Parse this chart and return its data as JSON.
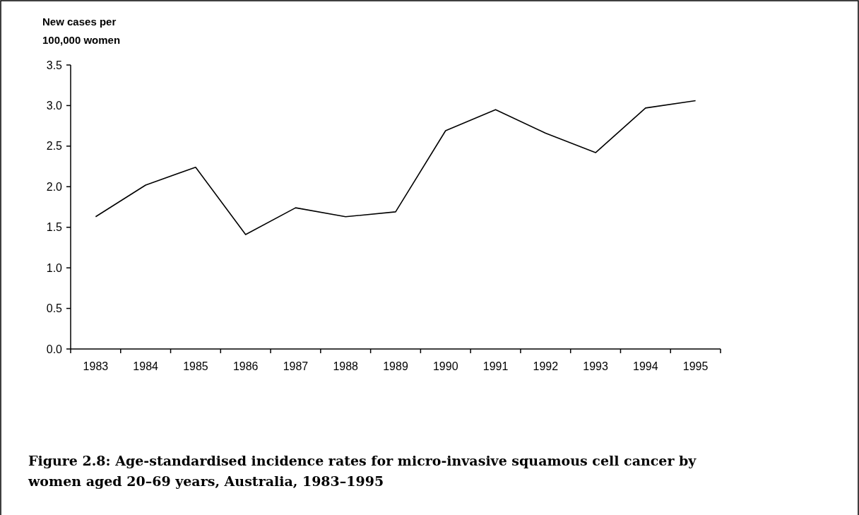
{
  "chart_data": {
    "type": "line",
    "ylabel": "New cases per 100,000 women",
    "title": "Figure 2.8: Age-standardised incidence rates for micro-invasive squamous cell cancer by women aged 20–69 years, Australia, 1983–1995",
    "categories": [
      "1983",
      "1984",
      "1985",
      "1986",
      "1987",
      "1988",
      "1989",
      "1990",
      "1991",
      "1992",
      "1993",
      "1994",
      "1995"
    ],
    "series": [
      {
        "color": "#000000",
        "values": [
          1.63,
          2.02,
          2.24,
          1.41,
          1.74,
          1.63,
          1.69,
          2.69,
          2.95,
          2.66,
          2.42,
          2.97,
          3.06
        ]
      }
    ],
    "ylim": [
      0,
      3.5
    ],
    "yticks": [
      {
        "value": 0,
        "label": "0.0"
      },
      0.5,
      {
        "value": 1,
        "label": "1.0"
      },
      1.5,
      {
        "value": 2,
        "label": "2.0"
      },
      2.5,
      {
        "value": 3,
        "label": "3.0"
      },
      3.5
    ],
    "grid": false,
    "marker": "none",
    "line_style": "solid"
  }
}
